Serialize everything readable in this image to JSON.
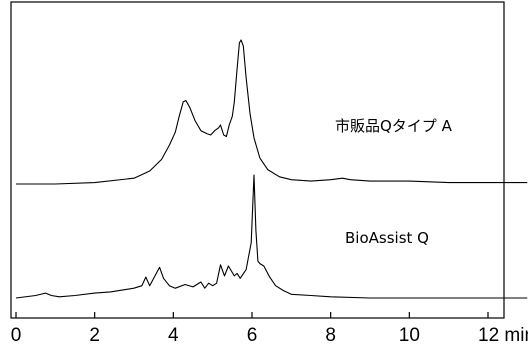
{
  "chart_data": {
    "type": "line",
    "xlim": [
      0,
      13
    ],
    "x_ticks": [
      0,
      2,
      4,
      6,
      8,
      10,
      12
    ],
    "x_tick_labels": [
      "0",
      "2",
      "4",
      "6",
      "8",
      "10",
      "12 min"
    ],
    "grid": false,
    "line_color": "#000000",
    "series": [
      {
        "name": "市販品Qタイプ A",
        "x": [
          0,
          1,
          2,
          3,
          3.4,
          3.7,
          3.9,
          4.05,
          4.15,
          4.25,
          4.32,
          4.42,
          4.55,
          4.7,
          4.85,
          4.95,
          5.05,
          5.15,
          5.2,
          5.28,
          5.35,
          5.42,
          5.5,
          5.55,
          5.62,
          5.68,
          5.72,
          5.78,
          5.85,
          5.95,
          6.05,
          6.2,
          6.4,
          6.7,
          7.0,
          7.5,
          8.0,
          8.3,
          8.5,
          9,
          10,
          11,
          12,
          13
        ],
        "y": [
          0,
          0,
          0.01,
          0.04,
          0.09,
          0.17,
          0.27,
          0.36,
          0.47,
          0.57,
          0.58,
          0.53,
          0.44,
          0.37,
          0.35,
          0.34,
          0.37,
          0.39,
          0.41,
          0.34,
          0.33,
          0.41,
          0.47,
          0.57,
          0.8,
          0.98,
          1.0,
          0.96,
          0.74,
          0.49,
          0.32,
          0.18,
          0.1,
          0.05,
          0.03,
          0.02,
          0.03,
          0.04,
          0.03,
          0.02,
          0.02,
          0.01,
          0.01,
          0.01
        ]
      },
      {
        "name": "BioAssist Q",
        "x": [
          0,
          0.5,
          0.75,
          0.9,
          1.1,
          1.5,
          2,
          2.4,
          2.8,
          3,
          3.2,
          3.3,
          3.4,
          3.5,
          3.65,
          3.75,
          3.9,
          4.05,
          4.3,
          4.5,
          4.7,
          4.8,
          4.9,
          5.0,
          5.1,
          5.2,
          5.3,
          5.4,
          5.55,
          5.62,
          5.7,
          5.85,
          5.98,
          6.05,
          6.1,
          6.15,
          6.2,
          6.3,
          6.45,
          6.6,
          6.8,
          7.0,
          7.5,
          8,
          9,
          10,
          11,
          12,
          13
        ],
        "y": [
          0,
          0.02,
          0.04,
          0.02,
          0.01,
          0.02,
          0.04,
          0.05,
          0.07,
          0.08,
          0.1,
          0.17,
          0.1,
          0.16,
          0.25,
          0.16,
          0.1,
          0.08,
          0.11,
          0.09,
          0.13,
          0.08,
          0.12,
          0.1,
          0.12,
          0.27,
          0.18,
          0.26,
          0.18,
          0.2,
          0.16,
          0.23,
          0.45,
          1.0,
          0.55,
          0.3,
          0.28,
          0.26,
          0.17,
          0.1,
          0.06,
          0.03,
          0.02,
          0.01,
          0.0,
          0.0,
          0.0,
          0.0,
          0.0
        ]
      }
    ]
  }
}
